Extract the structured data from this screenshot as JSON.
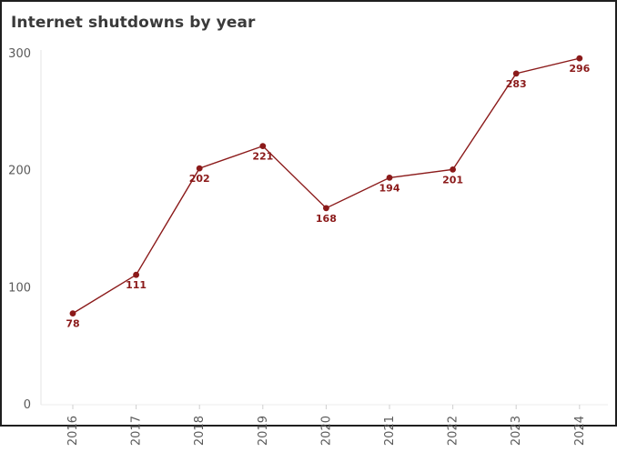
{
  "chart_data": {
    "type": "line",
    "title": "Internet shutdowns by year",
    "xlabel": "",
    "ylabel": "",
    "categories": [
      "2016",
      "2017",
      "2018",
      "2019",
      "2020",
      "2021",
      "2022",
      "2023",
      "2024"
    ],
    "series": [
      {
        "values": [
          78,
          111,
          202,
          221,
          168,
          194,
          201,
          283,
          296
        ],
        "color": "#8b1a1a"
      }
    ],
    "data_labels": [
      "78",
      "111",
      "202",
      "221",
      "168",
      "194",
      "201",
      "283",
      "296"
    ],
    "y_ticks": [
      0,
      100,
      200,
      300
    ],
    "y_tick_labels": [
      "0",
      "100",
      "200",
      "300"
    ],
    "ylim": [
      0,
      300
    ],
    "grid": false,
    "legend": "none",
    "x_tick_rotation": "vertical"
  }
}
